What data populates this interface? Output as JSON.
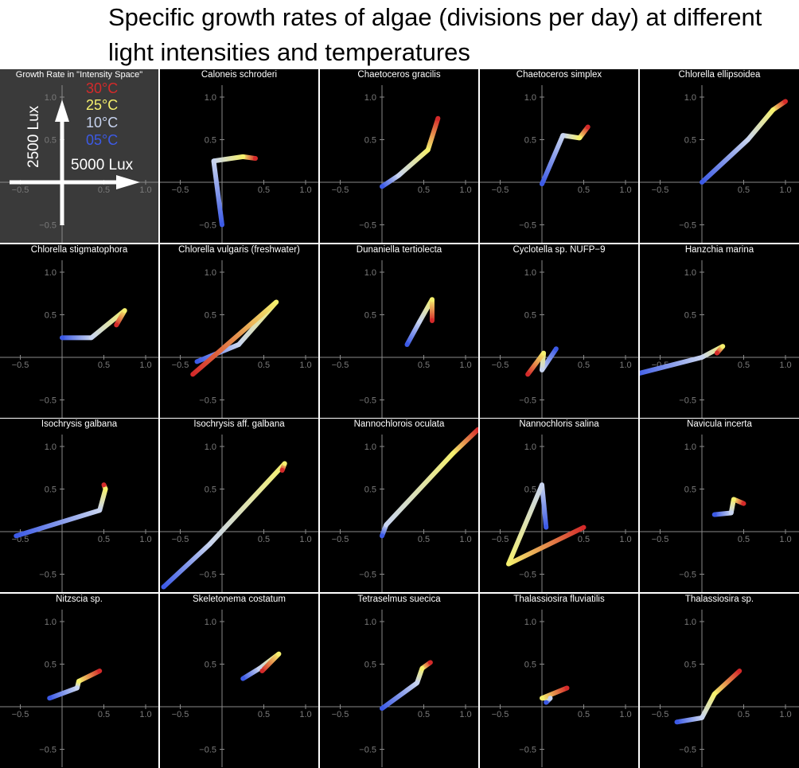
{
  "title": "Specific growth rates of algae (divisions per day) at different light intensities and temperatures",
  "legend": {
    "title": "Growth Rate in \"Intensity Space\"",
    "temperatures": [
      {
        "label": "30°C",
        "color": "#d42a2a"
      },
      {
        "label": "25°C",
        "color": "#f5f06e"
      },
      {
        "label": "10°C",
        "color": "#c8d4f0"
      },
      {
        "label": "05°C",
        "color": "#3c5ae6"
      }
    ],
    "y_arrow_label": "2500 Lux",
    "x_arrow_label": "5000 Lux"
  },
  "chart_data": {
    "type": "line",
    "description": "Each panel traces growth rate at 5000 Lux (x) versus 2500 Lux (y) across temperatures 05°C → 10°C → 25°C → 30°C",
    "temperature_order": [
      "05°C",
      "10°C",
      "25°C",
      "30°C"
    ],
    "gradient_colors": [
      "#3c5ae6",
      "#c8d4f0",
      "#f5f06e",
      "#d42a2a"
    ],
    "xlim": [
      -0.6,
      1.1
    ],
    "ylim": [
      -0.65,
      1.2
    ],
    "x_ticks": [
      -0.5,
      0.5,
      1.0
    ],
    "y_ticks": [
      1.0,
      0.5,
      -0.5
    ],
    "x_tick_labels": [
      "−0.5",
      "0.5",
      "1.0"
    ],
    "y_tick_labels": [
      "1.0",
      "0.5",
      "−0.5"
    ],
    "panels": [
      {
        "name": "Caloneis schroderi",
        "points": [
          [
            0.0,
            -0.5
          ],
          [
            -0.1,
            0.25
          ],
          [
            0.25,
            0.3
          ],
          [
            0.4,
            0.28
          ]
        ]
      },
      {
        "name": "Chaetoceros gracilis",
        "points": [
          [
            0.0,
            -0.05
          ],
          [
            0.2,
            0.08
          ],
          [
            0.55,
            0.38
          ],
          [
            0.67,
            0.75
          ]
        ]
      },
      {
        "name": "Chaetoceros simplex",
        "points": [
          [
            0.0,
            -0.02
          ],
          [
            0.25,
            0.55
          ],
          [
            0.45,
            0.52
          ],
          [
            0.55,
            0.65
          ]
        ]
      },
      {
        "name": "Chlorella ellipsoidea",
        "points": [
          [
            0.0,
            0.0
          ],
          [
            0.55,
            0.5
          ],
          [
            0.85,
            0.85
          ],
          [
            1.0,
            0.95
          ]
        ]
      },
      {
        "name": "Chlorella stigmatophora",
        "points": [
          [
            0.0,
            0.23
          ],
          [
            0.35,
            0.23
          ],
          [
            0.75,
            0.55
          ],
          [
            0.65,
            0.38
          ]
        ]
      },
      {
        "name": "Chlorella vulgaris (freshwater)",
        "points": [
          [
            -0.3,
            -0.05
          ],
          [
            0.2,
            0.15
          ],
          [
            0.65,
            0.65
          ],
          [
            -0.35,
            -0.2
          ]
        ]
      },
      {
        "name": "Dunaniella tertiolecta",
        "points": [
          [
            0.3,
            0.15
          ],
          [
            0.45,
            0.42
          ],
          [
            0.6,
            0.68
          ],
          [
            0.6,
            0.43
          ]
        ]
      },
      {
        "name": "Cyclotella sp. NUFP−9",
        "points": [
          [
            0.17,
            0.1
          ],
          [
            0.0,
            -0.15
          ],
          [
            0.02,
            0.05
          ],
          [
            -0.17,
            -0.2
          ]
        ]
      },
      {
        "name": "Hanzchia marina",
        "points": [
          [
            -0.8,
            -0.2
          ],
          [
            0.0,
            0.0
          ],
          [
            0.25,
            0.13
          ],
          [
            0.18,
            0.05
          ]
        ]
      },
      {
        "name": "Isochrysis galbana",
        "points": [
          [
            -0.55,
            -0.05
          ],
          [
            0.45,
            0.25
          ],
          [
            0.52,
            0.5
          ],
          [
            0.5,
            0.55
          ]
        ]
      },
      {
        "name": "Isochrysis aff. galbana",
        "points": [
          [
            -0.7,
            -0.65
          ],
          [
            -0.15,
            -0.15
          ],
          [
            0.75,
            0.8
          ],
          [
            0.72,
            0.72
          ]
        ]
      },
      {
        "name": "Nannochlorois oculata",
        "points": [
          [
            0.0,
            -0.05
          ],
          [
            0.05,
            0.08
          ],
          [
            0.85,
            0.92
          ],
          [
            1.15,
            1.2
          ]
        ]
      },
      {
        "name": "Nannochloris salina",
        "points": [
          [
            0.05,
            0.05
          ],
          [
            0.0,
            0.55
          ],
          [
            -0.4,
            -0.38
          ],
          [
            0.5,
            0.05
          ]
        ]
      },
      {
        "name": "Navicula incerta",
        "points": [
          [
            0.15,
            0.2
          ],
          [
            0.35,
            0.22
          ],
          [
            0.38,
            0.38
          ],
          [
            0.5,
            0.33
          ]
        ]
      },
      {
        "name": "Nitzscia sp.",
        "points": [
          [
            -0.15,
            0.1
          ],
          [
            0.18,
            0.22
          ],
          [
            0.2,
            0.3
          ],
          [
            0.45,
            0.42
          ]
        ]
      },
      {
        "name": "Skeletonema costatum",
        "points": [
          [
            0.25,
            0.33
          ],
          [
            0.45,
            0.45
          ],
          [
            0.68,
            0.62
          ],
          [
            0.48,
            0.42
          ]
        ]
      },
      {
        "name": "Tetraselmus suecica",
        "points": [
          [
            0.0,
            -0.02
          ],
          [
            0.42,
            0.28
          ],
          [
            0.48,
            0.45
          ],
          [
            0.58,
            0.52
          ]
        ]
      },
      {
        "name": "Thalassiosira fluviatilis",
        "points": [
          [
            0.05,
            0.05
          ],
          [
            0.1,
            0.1
          ],
          [
            0.0,
            0.1
          ],
          [
            0.3,
            0.22
          ]
        ]
      },
      {
        "name": "Thalassiosira sp.",
        "points": [
          [
            -0.3,
            -0.18
          ],
          [
            0.0,
            -0.13
          ],
          [
            0.15,
            0.15
          ],
          [
            0.45,
            0.42
          ]
        ]
      }
    ]
  }
}
